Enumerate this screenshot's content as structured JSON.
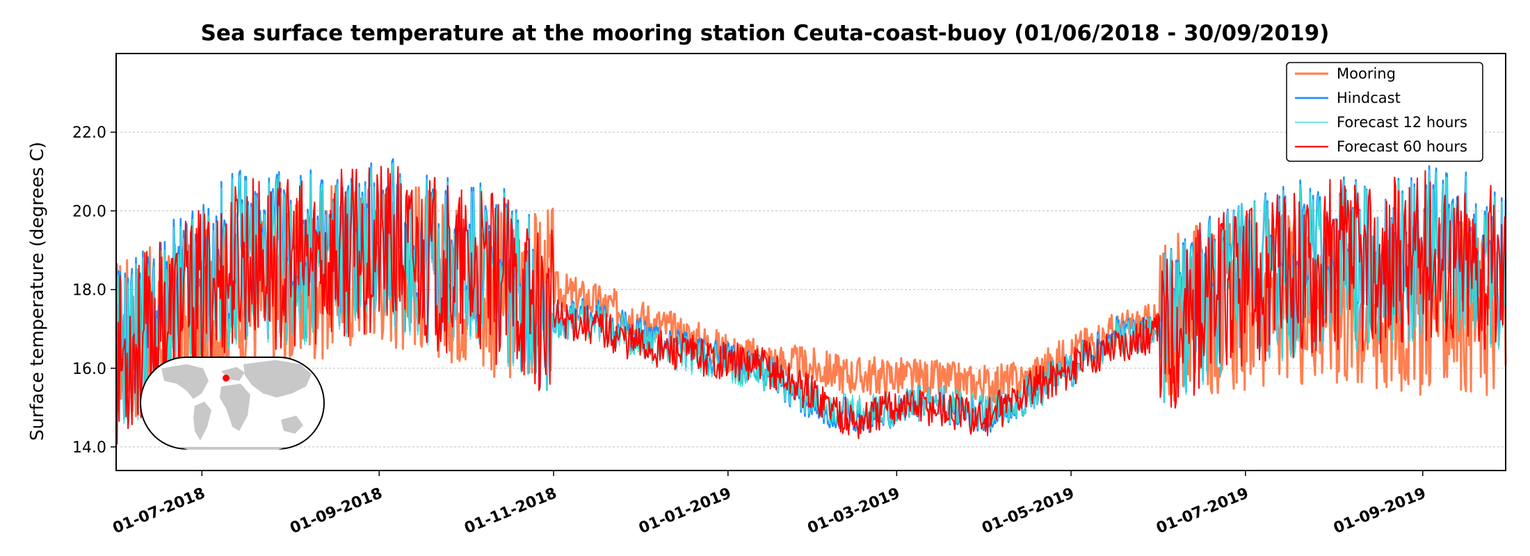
{
  "chart_data": {
    "type": "line",
    "title": "Sea surface temperature at the mooring station Ceuta-coast-buoy (01/06/2018 - 30/09/2019)",
    "xlabel": "",
    "ylabel": "Surface temperature (degrees C)",
    "ylim": [
      13.4,
      24.0
    ],
    "xlim": [
      "2018-06-01",
      "2019-09-30"
    ],
    "yticks": [
      "14.0",
      "16.0",
      "18.0",
      "20.0",
      "22.0"
    ],
    "ytick_values": [
      14.0,
      16.0,
      18.0,
      20.0,
      22.0
    ],
    "xticks": [
      "01-07-2018",
      "01-09-2018",
      "01-11-2018",
      "01-01-2019",
      "01-03-2019",
      "01-05-2019",
      "01-07-2019",
      "01-09-2019"
    ],
    "xtick_dates": [
      "2018-07-01",
      "2018-09-01",
      "2018-11-01",
      "2019-01-01",
      "2019-03-01",
      "2019-05-01",
      "2019-07-01",
      "2019-09-01"
    ],
    "grid": "horizontal",
    "legend_position": "top-right",
    "inset": "world-map with station marker",
    "series": [
      {
        "name": "Mooring",
        "color": "#ff7f50",
        "x": [
          "2018-06-01",
          "2018-06-15",
          "2018-07-01",
          "2018-07-15",
          "2018-08-01",
          "2018-08-15",
          "2018-09-01",
          "2018-09-15",
          "2018-10-01",
          "2018-10-15",
          "2018-11-01",
          "2018-11-15",
          "2018-12-01",
          "2018-12-15",
          "2019-01-01",
          "2019-01-15",
          "2019-02-01",
          "2019-02-15",
          "2019-03-01",
          "2019-03-15",
          "2019-04-01",
          "2019-04-15",
          "2019-05-01",
          "2019-05-15",
          "2019-06-01",
          "2019-06-15",
          "2019-07-01",
          "2019-07-15",
          "2019-08-01",
          "2019-08-15",
          "2019-09-01",
          "2019-09-15",
          "2019-09-30"
        ],
        "values": [
          16.8,
          16.9,
          17.3,
          17.8,
          18.0,
          18.5,
          18.8,
          18.6,
          18.2,
          17.8,
          18.0,
          17.7,
          17.3,
          16.9,
          16.4,
          16.2,
          16.0,
          15.8,
          15.8,
          15.7,
          15.6,
          15.7,
          16.4,
          16.9,
          17.2,
          17.5,
          17.6,
          17.8,
          17.7,
          17.4,
          17.5,
          17.6,
          17.3
        ]
      },
      {
        "name": "Hindcast",
        "color": "#1e90ff",
        "x": [
          "2018-06-01",
          "2018-06-15",
          "2018-07-01",
          "2018-07-15",
          "2018-08-01",
          "2018-08-15",
          "2018-09-01",
          "2018-09-15",
          "2018-10-01",
          "2018-10-15",
          "2018-11-01",
          "2018-11-15",
          "2018-12-01",
          "2018-12-15",
          "2019-01-01",
          "2019-01-15",
          "2019-02-01",
          "2019-02-15",
          "2019-03-01",
          "2019-03-15",
          "2019-04-01",
          "2019-04-15",
          "2019-05-01",
          "2019-05-15",
          "2019-06-01",
          "2019-06-15",
          "2019-07-01",
          "2019-07-15",
          "2019-08-01",
          "2019-08-15",
          "2019-09-01",
          "2019-09-15",
          "2019-09-30"
        ],
        "values": [
          16.5,
          17.2,
          18.2,
          19.0,
          18.8,
          18.9,
          19.3,
          18.9,
          18.6,
          18.4,
          17.2,
          17.3,
          16.8,
          16.5,
          16.2,
          15.9,
          15.0,
          14.7,
          15.0,
          15.1,
          14.8,
          15.3,
          16.0,
          16.8,
          17.0,
          17.8,
          18.0,
          18.5,
          18.8,
          18.6,
          19.0,
          18.8,
          18.5
        ]
      },
      {
        "name": "Forecast 12 hours",
        "color": "#40e0d0",
        "x": [
          "2018-06-01",
          "2018-06-15",
          "2018-07-01",
          "2018-07-15",
          "2018-08-01",
          "2018-08-15",
          "2018-09-01",
          "2018-09-15",
          "2018-10-01",
          "2018-10-15",
          "2018-11-01",
          "2018-11-15",
          "2018-12-01",
          "2018-12-15",
          "2019-01-01",
          "2019-01-15",
          "2019-02-01",
          "2019-02-15",
          "2019-03-01",
          "2019-03-15",
          "2019-04-01",
          "2019-04-15",
          "2019-05-01",
          "2019-05-15",
          "2019-06-01",
          "2019-06-15",
          "2019-07-01",
          "2019-07-15",
          "2019-08-01",
          "2019-08-15",
          "2019-09-01",
          "2019-09-15",
          "2019-09-30"
        ],
        "values": [
          16.4,
          17.0,
          18.0,
          18.9,
          18.7,
          18.8,
          19.2,
          18.8,
          18.5,
          18.3,
          17.2,
          17.2,
          16.7,
          16.4,
          16.1,
          15.9,
          15.1,
          14.8,
          15.0,
          15.1,
          14.9,
          15.3,
          16.0,
          16.7,
          17.0,
          17.7,
          18.0,
          18.4,
          18.7,
          18.6,
          18.9,
          18.7,
          18.4
        ]
      },
      {
        "name": "Forecast 60 hours",
        "color": "#ff0000",
        "x": [
          "2018-06-01",
          "2018-06-15",
          "2018-07-01",
          "2018-07-15",
          "2018-08-01",
          "2018-08-15",
          "2018-09-01",
          "2018-09-15",
          "2018-10-01",
          "2018-10-15",
          "2018-11-01",
          "2018-11-15",
          "2018-12-01",
          "2018-12-15",
          "2019-01-01",
          "2019-01-15",
          "2019-02-01",
          "2019-02-15",
          "2019-03-01",
          "2019-03-15",
          "2019-04-01",
          "2019-04-15",
          "2019-05-01",
          "2019-05-15",
          "2019-06-01",
          "2019-06-15",
          "2019-07-01",
          "2019-07-15",
          "2019-08-01",
          "2019-08-15",
          "2019-09-01",
          "2019-09-15",
          "2019-09-30"
        ],
        "values": [
          16.2,
          17.0,
          17.9,
          18.8,
          18.6,
          18.8,
          19.1,
          18.8,
          18.4,
          18.2,
          17.3,
          17.1,
          16.6,
          16.4,
          16.2,
          16.0,
          15.3,
          14.6,
          15.1,
          15.0,
          14.7,
          15.4,
          16.0,
          16.6,
          16.9,
          17.6,
          18.0,
          18.4,
          18.7,
          18.5,
          18.9,
          18.7,
          18.4
        ]
      }
    ]
  }
}
